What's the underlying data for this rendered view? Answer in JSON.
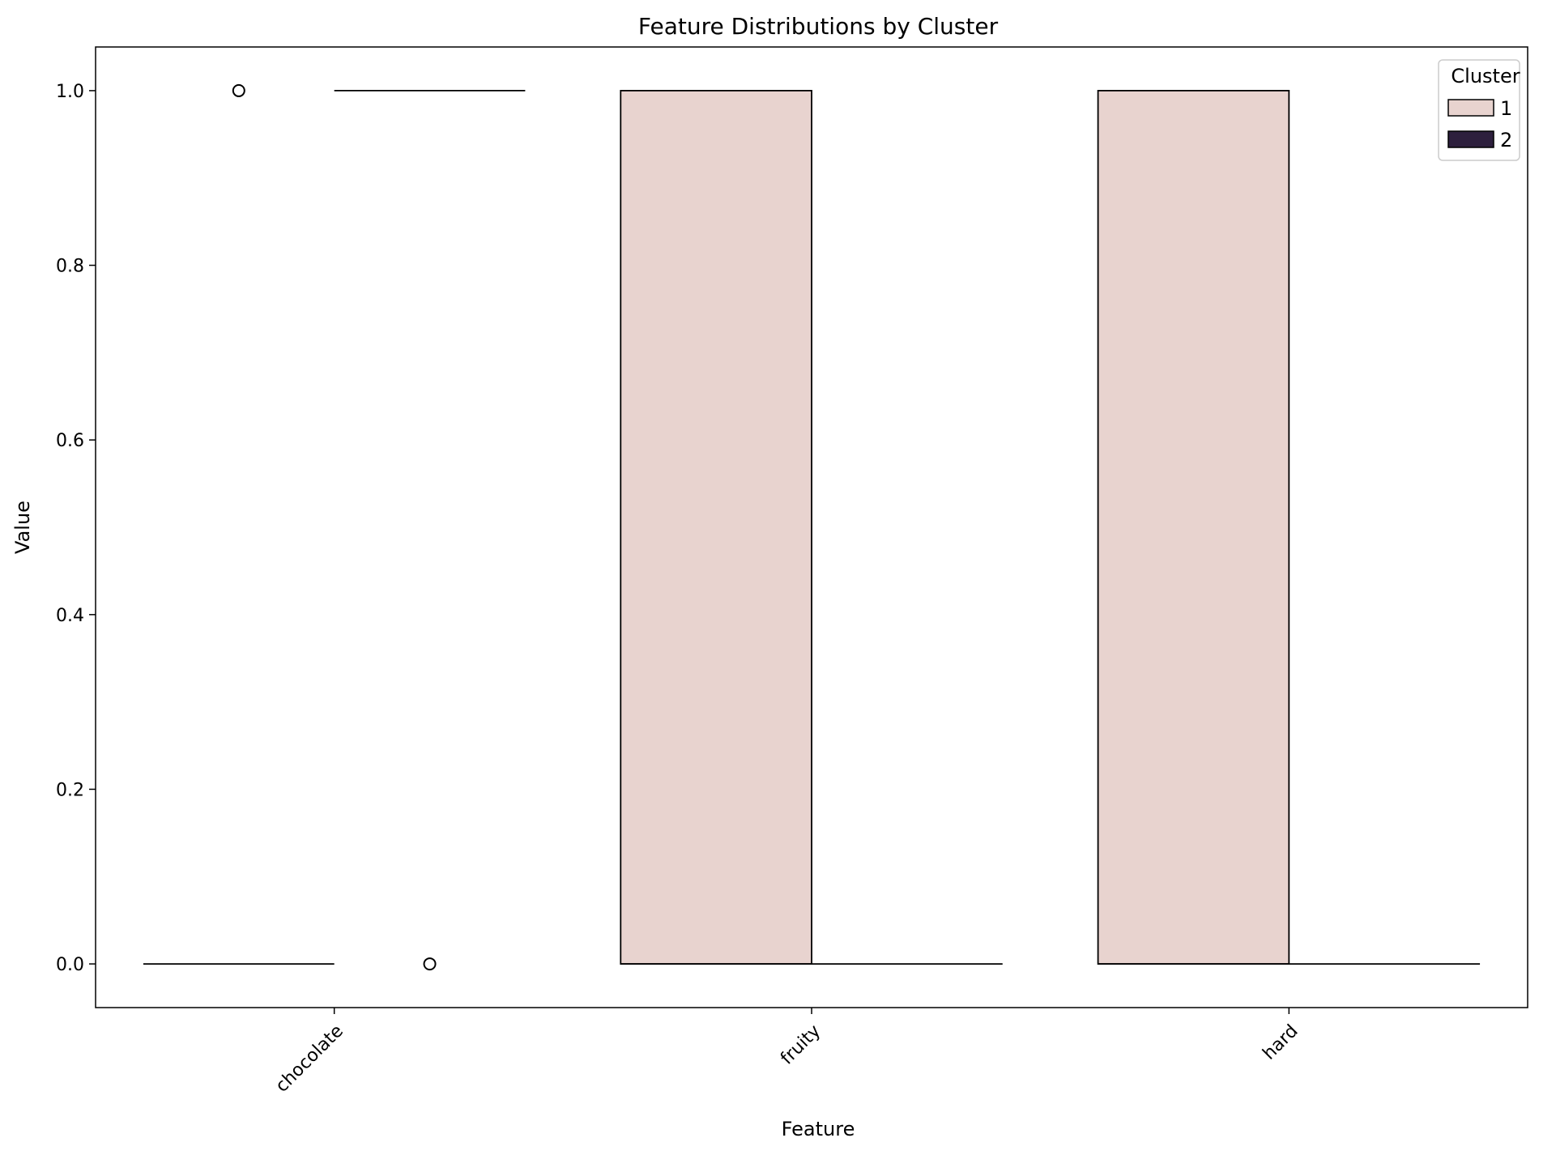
{
  "chart_data": {
    "type": "box",
    "title": "Feature Distributions by Cluster",
    "xlabel": "Feature",
    "ylabel": "Value",
    "categories": [
      "chocolate",
      "fruity",
      "hard"
    ],
    "ylim": [
      -0.05,
      1.05
    ],
    "yticks": [
      0.0,
      0.2,
      0.4,
      0.6,
      0.8,
      1.0
    ],
    "ytick_labels": [
      "0.0",
      "0.2",
      "0.4",
      "0.6",
      "0.8",
      "1.0"
    ],
    "grid": false,
    "legend": {
      "title": "Cluster",
      "placement": "top-right",
      "entries": [
        "1",
        "2"
      ]
    },
    "series": [
      {
        "name": "1",
        "color": "#e8d3cf",
        "boxes": [
          {
            "q1": 0,
            "median": 0,
            "q3": 0,
            "whisker_low": 0,
            "whisker_high": 0,
            "outliers": [
              1
            ]
          },
          {
            "q1": 0,
            "median": 0,
            "q3": 1,
            "whisker_low": 0,
            "whisker_high": 1,
            "outliers": []
          },
          {
            "q1": 0,
            "median": 0,
            "q3": 1,
            "whisker_low": 0,
            "whisker_high": 1,
            "outliers": []
          }
        ]
      },
      {
        "name": "2",
        "color": "#2d1f3d",
        "boxes": [
          {
            "q1": 1,
            "median": 1,
            "q3": 1,
            "whisker_low": 1,
            "whisker_high": 1,
            "outliers": [
              0
            ]
          },
          {
            "q1": 0,
            "median": 0,
            "q3": 0,
            "whisker_low": 0,
            "whisker_high": 0,
            "outliers": []
          },
          {
            "q1": 0,
            "median": 0,
            "q3": 0,
            "whisker_low": 0,
            "whisker_high": 0,
            "outliers": []
          }
        ]
      }
    ]
  }
}
